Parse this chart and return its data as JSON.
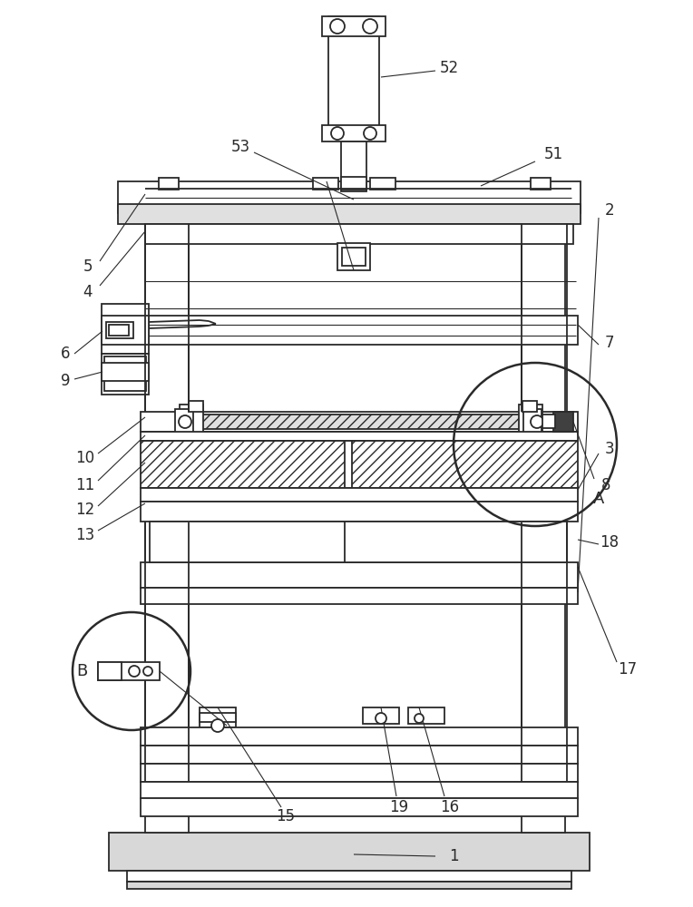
{
  "bg_color": "#ffffff",
  "line_color": "#2a2a2a",
  "lw": 1.3,
  "lw_thin": 0.8,
  "lw_thick": 1.8
}
